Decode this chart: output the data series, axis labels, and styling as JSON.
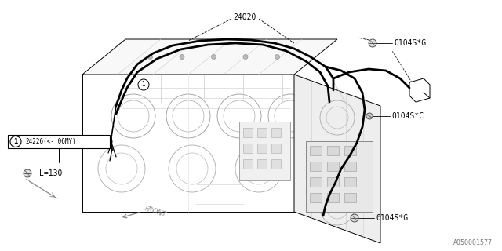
{
  "bg_color": "#ffffff",
  "line_color": "#000000",
  "mid_color": "#888888",
  "light_color": "#bbbbbb",
  "wire_color": "#000000",
  "watermark": "A050001577",
  "labels": {
    "part_24020": "24020",
    "part_0104SG_top": "0104S*G",
    "part_0104SC": "0104S*C",
    "part_0104SG_bot": "0104S*G",
    "callout_text": "24226(<-'06MY)",
    "callout_num": "1",
    "length": "L=130",
    "front": "FRONT"
  },
  "font_size": 7,
  "font_size_sm": 6,
  "font_size_wm": 6,
  "lw_body": 0.7,
  "lw_wire": 2.0,
  "lw_thin": 0.5,
  "lw_label": 0.6
}
